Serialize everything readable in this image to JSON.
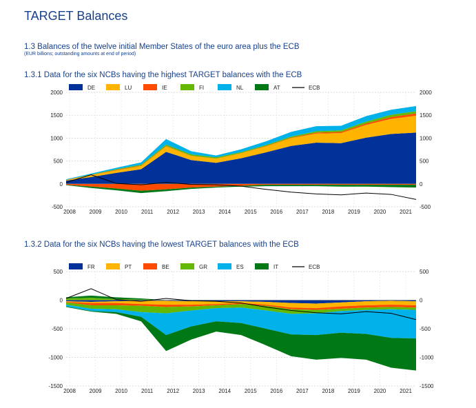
{
  "page": {
    "title": "TARGET Balances",
    "section_title": "1.3 Balances of the twelve initial Member States of the euro area plus the ECB",
    "section_note": "(EUR billions; outstanding amounts at end of period)"
  },
  "chart_data": [
    {
      "type": "area",
      "title": "1.3.1 Data for the six NCBs having the highest TARGET balances with the ECB",
      "ylim": [
        -500,
        2000
      ],
      "yticks": [
        2000,
        1500,
        1000,
        500,
        0,
        -500
      ],
      "x_ticks": [
        "2008",
        "2009",
        "2010",
        "2011",
        "2012",
        "2013",
        "2014",
        "2015",
        "2016",
        "2017",
        "2018",
        "2019",
        "2020",
        "2021"
      ],
      "x": [
        "2008",
        "2009",
        "2010",
        "2011",
        "2012",
        "2013",
        "2014",
        "2015",
        "2016",
        "2017",
        "2018",
        "2019",
        "2020",
        "2021",
        "2021-10"
      ],
      "series": [
        {
          "name": "DE",
          "color": "#003299",
          "values": [
            70,
            150,
            240,
            320,
            700,
            520,
            460,
            560,
            690,
            830,
            900,
            890,
            1010,
            1090,
            1120
          ]
        },
        {
          "name": "LU",
          "color": "#ffb400",
          "values": [
            10,
            40,
            55,
            70,
            120,
            90,
            90,
            110,
            130,
            170,
            200,
            220,
            280,
            330,
            370
          ]
        },
        {
          "name": "IE",
          "color": "#ff4b00",
          "values": [
            5,
            5,
            10,
            10,
            10,
            5,
            5,
            5,
            10,
            10,
            20,
            25,
            30,
            40,
            50
          ]
        },
        {
          "name": "FI",
          "color": "#65b800",
          "values": [
            5,
            10,
            15,
            20,
            30,
            30,
            25,
            20,
            20,
            25,
            30,
            35,
            40,
            50,
            50
          ]
        },
        {
          "name": "NL",
          "color": "#00b1ea",
          "values": [
            10,
            20,
            30,
            50,
            120,
            70,
            40,
            60,
            80,
            100,
            110,
            100,
            120,
            110,
            110
          ]
        },
        {
          "name": "AT",
          "color": "#007816",
          "values": [
            0,
            0,
            0,
            0,
            0,
            0,
            0,
            0,
            0,
            0,
            0,
            0,
            0,
            0,
            0
          ]
        }
      ],
      "negative_series": [
        {
          "name": "IE",
          "values": [
            -20,
            -60,
            -100,
            -150,
            -120,
            -80,
            -60,
            -40,
            -20,
            -20,
            -20,
            -20,
            -20,
            -20,
            -20
          ]
        },
        {
          "name": "AT",
          "values": [
            -10,
            -30,
            -40,
            -50,
            -40,
            -30,
            -20,
            -20,
            -30,
            -30,
            -30,
            -40,
            -40,
            -50,
            -60
          ]
        }
      ],
      "line_series": {
        "name": "ECB",
        "color": "#000000",
        "values": [
          30,
          200,
          10,
          -20,
          30,
          -10,
          -20,
          -50,
          -120,
          -180,
          -220,
          -240,
          -200,
          -230,
          -340
        ]
      }
    },
    {
      "type": "area",
      "title": "1.3.2 Data for the six NCBs having the lowest TARGET balances with the ECB",
      "ylim": [
        -1500,
        500
      ],
      "yticks": [
        500,
        0,
        -500,
        -1000,
        -1500
      ],
      "x_ticks": [
        "2008",
        "2009",
        "2010",
        "2011",
        "2012",
        "2013",
        "2014",
        "2015",
        "2016",
        "2017",
        "2018",
        "2019",
        "2020",
        "2021"
      ],
      "x": [
        "2008",
        "2009",
        "2010",
        "2011",
        "2012",
        "2013",
        "2014",
        "2015",
        "2016",
        "2017",
        "2018",
        "2019",
        "2020",
        "2021",
        "2021-10"
      ],
      "series": [
        {
          "name": "FR",
          "color": "#003299",
          "values": [
            -20,
            -30,
            -20,
            -10,
            -10,
            -20,
            -20,
            -20,
            -30,
            -50,
            -60,
            -40,
            -20,
            -10,
            -20
          ]
        },
        {
          "name": "PT",
          "color": "#ffb400",
          "values": [
            -10,
            -20,
            -30,
            -60,
            -70,
            -60,
            -50,
            -30,
            -50,
            -80,
            -80,
            -70,
            -70,
            -70,
            -70
          ]
        },
        {
          "name": "BE",
          "color": "#ff4b00",
          "values": [
            -10,
            -40,
            -40,
            -30,
            -40,
            -30,
            -20,
            -20,
            -20,
            -30,
            -30,
            -40,
            -40,
            -40,
            -40
          ]
        },
        {
          "name": "GR",
          "color": "#65b800",
          "values": [
            -40,
            -60,
            -70,
            -110,
            -110,
            -70,
            -50,
            -60,
            -80,
            -80,
            -60,
            -40,
            -40,
            -40,
            -40
          ]
        },
        {
          "name": "ES",
          "color": "#00b1ea",
          "values": [
            -30,
            -40,
            -50,
            -80,
            -380,
            -280,
            -230,
            -270,
            -320,
            -360,
            -380,
            -380,
            -420,
            -500,
            -500
          ]
        },
        {
          "name": "IT",
          "color": "#007816",
          "values": [
            -10,
            -10,
            -30,
            -80,
            -280,
            -230,
            -180,
            -210,
            -290,
            -380,
            -430,
            -440,
            -450,
            -520,
            -560
          ]
        }
      ],
      "positive_series": [
        {
          "name": "GR",
          "values": [
            30,
            40,
            20,
            10,
            0,
            0,
            0,
            0,
            0,
            0,
            0,
            0,
            0,
            0,
            0
          ]
        },
        {
          "name": "IT",
          "values": [
            20,
            40,
            30,
            20,
            0,
            0,
            0,
            0,
            0,
            0,
            0,
            0,
            0,
            0,
            0
          ]
        }
      ],
      "line_series": {
        "name": "ECB",
        "color": "#000000",
        "values": [
          30,
          200,
          10,
          -20,
          30,
          -10,
          -20,
          -50,
          -120,
          -180,
          -220,
          -240,
          -200,
          -230,
          -340
        ]
      }
    }
  ]
}
